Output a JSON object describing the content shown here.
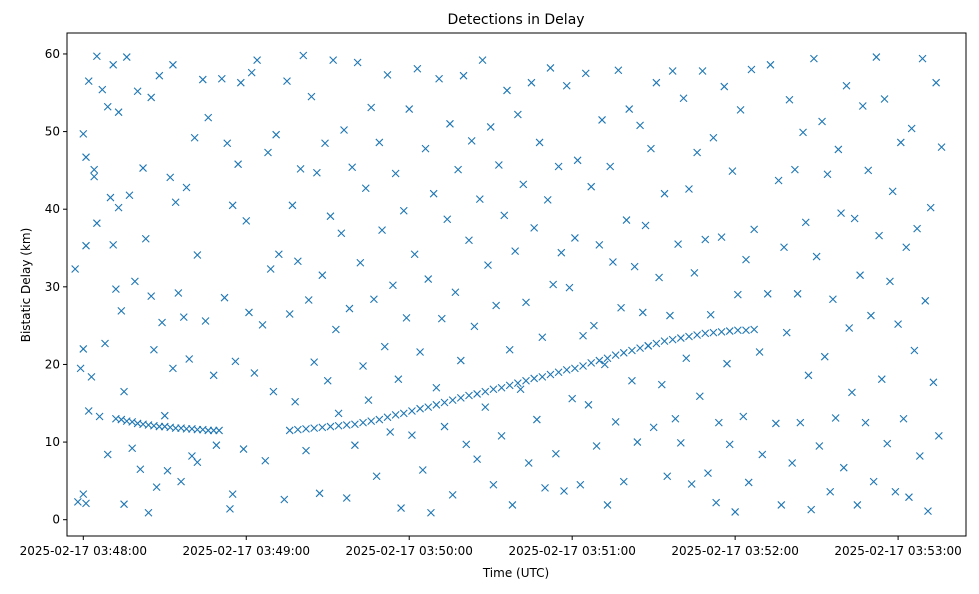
{
  "chart_data": {
    "type": "scatter",
    "title": "Detections in Delay",
    "xlabel": "Time (UTC)",
    "ylabel": "Bistatic Delay (km)",
    "x_units": "seconds after 2025-02-17 03:48:00",
    "xlim": [
      -6,
      325
    ],
    "ylim": [
      -2.1,
      62.7
    ],
    "grid": false,
    "marker": "x",
    "color": "#1f77b4",
    "x_ticks": [
      {
        "value": 0,
        "label": "2025-02-17 03:48:00"
      },
      {
        "value": 60,
        "label": "2025-02-17 03:49:00"
      },
      {
        "value": 120,
        "label": "2025-02-17 03:50:00"
      },
      {
        "value": 180,
        "label": "2025-02-17 03:51:00"
      },
      {
        "value": 240,
        "label": "2025-02-17 03:52:00"
      },
      {
        "value": 300,
        "label": "2025-02-17 03:53:00"
      }
    ],
    "y_ticks": [
      {
        "value": 0,
        "label": "0"
      },
      {
        "value": 10,
        "label": "10"
      },
      {
        "value": 20,
        "label": "20"
      },
      {
        "value": 30,
        "label": "30"
      },
      {
        "value": 40,
        "label": "40"
      },
      {
        "value": 50,
        "label": "50"
      },
      {
        "value": 60,
        "label": "60"
      }
    ],
    "track_points": [
      [
        12,
        13.0
      ],
      [
        14,
        12.9
      ],
      [
        16,
        12.7
      ],
      [
        18,
        12.6
      ],
      [
        20,
        12.4
      ],
      [
        22,
        12.3
      ],
      [
        24,
        12.2
      ],
      [
        26,
        12.1
      ],
      [
        28,
        12.0
      ],
      [
        30,
        12.0
      ],
      [
        32,
        11.9
      ],
      [
        34,
        11.8
      ],
      [
        36,
        11.8
      ],
      [
        38,
        11.7
      ],
      [
        40,
        11.7
      ],
      [
        42,
        11.6
      ],
      [
        44,
        11.6
      ],
      [
        46,
        11.5
      ],
      [
        48,
        11.5
      ],
      [
        50,
        11.5
      ],
      [
        76,
        11.5
      ],
      [
        79,
        11.6
      ],
      [
        82,
        11.7
      ],
      [
        85,
        11.8
      ],
      [
        88,
        11.9
      ],
      [
        91,
        12.0
      ],
      [
        94,
        12.1
      ],
      [
        97,
        12.2
      ],
      [
        100,
        12.3
      ],
      [
        103,
        12.5
      ],
      [
        106,
        12.7
      ],
      [
        109,
        12.9
      ],
      [
        112,
        13.2
      ],
      [
        115,
        13.5
      ],
      [
        118,
        13.7
      ],
      [
        121,
        14.0
      ],
      [
        124,
        14.3
      ],
      [
        127,
        14.5
      ],
      [
        130,
        14.8
      ],
      [
        133,
        15.1
      ],
      [
        136,
        15.4
      ],
      [
        139,
        15.7
      ],
      [
        142,
        16.0
      ],
      [
        145,
        16.2
      ],
      [
        148,
        16.5
      ],
      [
        151,
        16.8
      ],
      [
        154,
        17.0
      ],
      [
        157,
        17.3
      ],
      [
        160,
        17.6
      ],
      [
        163,
        17.9
      ],
      [
        166,
        18.2
      ],
      [
        169,
        18.4
      ],
      [
        172,
        18.7
      ],
      [
        175,
        19.0
      ],
      [
        178,
        19.3
      ],
      [
        181,
        19.5
      ],
      [
        184,
        19.8
      ],
      [
        187,
        20.2
      ],
      [
        190,
        20.5
      ],
      [
        193,
        20.8
      ],
      [
        196,
        21.2
      ],
      [
        199,
        21.5
      ],
      [
        202,
        21.8
      ],
      [
        205,
        22.1
      ],
      [
        208,
        22.4
      ],
      [
        211,
        22.7
      ],
      [
        214,
        23.0
      ],
      [
        217,
        23.2
      ],
      [
        220,
        23.4
      ],
      [
        223,
        23.6
      ],
      [
        226,
        23.8
      ],
      [
        229,
        24.0
      ],
      [
        232,
        24.1
      ],
      [
        235,
        24.2
      ],
      [
        238,
        24.3
      ],
      [
        241,
        24.4
      ],
      [
        244,
        24.4
      ],
      [
        247,
        24.5
      ]
    ],
    "noise_points": [
      [
        -3,
        32.3
      ],
      [
        -2,
        2.3
      ],
      [
        -1,
        19.5
      ],
      [
        0,
        3.3
      ],
      [
        0,
        22
      ],
      [
        0,
        49.7
      ],
      [
        1,
        46.7
      ],
      [
        1,
        35.3
      ],
      [
        1,
        2.1
      ],
      [
        2,
        56.5
      ],
      [
        2,
        14
      ],
      [
        3,
        18.4
      ],
      [
        4,
        45.1
      ],
      [
        4,
        44.2
      ],
      [
        5,
        59.7
      ],
      [
        5,
        38.2
      ],
      [
        6,
        13.3
      ],
      [
        7,
        55.4
      ],
      [
        8,
        22.7
      ],
      [
        9,
        53.2
      ],
      [
        9,
        8.4
      ],
      [
        10,
        41.5
      ],
      [
        11,
        58.6
      ],
      [
        11,
        35.4
      ],
      [
        12,
        29.7
      ],
      [
        13,
        52.5
      ],
      [
        13,
        40.2
      ],
      [
        14,
        26.9
      ],
      [
        15,
        16.5
      ],
      [
        15,
        2.0
      ],
      [
        16,
        59.6
      ],
      [
        17,
        41.8
      ],
      [
        18,
        9.2
      ],
      [
        19,
        30.7
      ],
      [
        20,
        55.2
      ],
      [
        21,
        6.5
      ],
      [
        22,
        45.3
      ],
      [
        23,
        36.2
      ],
      [
        24,
        0.9
      ],
      [
        25,
        54.4
      ],
      [
        25,
        28.8
      ],
      [
        26,
        21.9
      ],
      [
        27,
        4.2
      ],
      [
        28,
        57.2
      ],
      [
        29,
        25.4
      ],
      [
        30,
        13.4
      ],
      [
        31,
        6.3
      ],
      [
        32,
        44.1
      ],
      [
        33,
        58.6
      ],
      [
        33,
        19.5
      ],
      [
        34,
        40.9
      ],
      [
        35,
        29.2
      ],
      [
        36,
        4.9
      ],
      [
        37,
        26.1
      ],
      [
        38,
        42.8
      ],
      [
        39,
        20.7
      ],
      [
        40,
        8.2
      ],
      [
        41,
        49.2
      ],
      [
        42,
        34.1
      ],
      [
        42,
        7.4
      ],
      [
        44,
        56.7
      ],
      [
        45,
        25.6
      ],
      [
        46,
        51.8
      ],
      [
        48,
        18.6
      ],
      [
        49,
        9.6
      ],
      [
        51,
        56.8
      ],
      [
        52,
        28.6
      ],
      [
        53,
        48.5
      ],
      [
        54,
        1.4
      ],
      [
        55,
        40.5
      ],
      [
        55,
        3.3
      ],
      [
        56,
        20.4
      ],
      [
        57,
        45.8
      ],
      [
        58,
        56.3
      ],
      [
        59,
        9.1
      ],
      [
        60,
        38.5
      ],
      [
        61,
        26.7
      ],
      [
        62,
        57.6
      ],
      [
        63,
        18.9
      ],
      [
        64,
        59.2
      ],
      [
        66,
        25.1
      ],
      [
        67,
        7.6
      ],
      [
        68,
        47.3
      ],
      [
        69,
        32.3
      ],
      [
        70,
        16.5
      ],
      [
        71,
        49.6
      ],
      [
        72,
        34.2
      ],
      [
        74,
        2.6
      ],
      [
        75,
        56.5
      ],
      [
        76,
        26.5
      ],
      [
        77,
        40.5
      ],
      [
        78,
        15.2
      ],
      [
        79,
        33.3
      ],
      [
        80,
        45.2
      ],
      [
        81,
        59.8
      ],
      [
        82,
        8.9
      ],
      [
        83,
        28.3
      ],
      [
        84,
        54.5
      ],
      [
        85,
        20.3
      ],
      [
        86,
        44.7
      ],
      [
        87,
        3.4
      ],
      [
        88,
        31.5
      ],
      [
        89,
        48.5
      ],
      [
        90,
        17.9
      ],
      [
        91,
        39.1
      ],
      [
        92,
        59.2
      ],
      [
        93,
        24.5
      ],
      [
        94,
        13.7
      ],
      [
        95,
        36.9
      ],
      [
        96,
        50.2
      ],
      [
        97,
        2.8
      ],
      [
        98,
        27.2
      ],
      [
        99,
        45.4
      ],
      [
        100,
        9.6
      ],
      [
        101,
        58.9
      ],
      [
        102,
        33.1
      ],
      [
        103,
        19.8
      ],
      [
        104,
        42.7
      ],
      [
        105,
        15.4
      ],
      [
        106,
        53.1
      ],
      [
        107,
        28.4
      ],
      [
        108,
        5.6
      ],
      [
        109,
        48.6
      ],
      [
        110,
        37.3
      ],
      [
        111,
        22.3
      ],
      [
        112,
        57.3
      ],
      [
        113,
        11.3
      ],
      [
        114,
        30.2
      ],
      [
        115,
        44.6
      ],
      [
        116,
        18.1
      ],
      [
        117,
        1.5
      ],
      [
        118,
        39.8
      ],
      [
        119,
        26.0
      ],
      [
        120,
        52.9
      ],
      [
        121,
        10.9
      ],
      [
        122,
        34.2
      ],
      [
        123,
        58.1
      ],
      [
        124,
        21.6
      ],
      [
        125,
        6.4
      ],
      [
        126,
        47.8
      ],
      [
        127,
        31.0
      ],
      [
        128,
        0.9
      ],
      [
        129,
        42.0
      ],
      [
        130,
        17.0
      ],
      [
        131,
        56.8
      ],
      [
        132,
        25.9
      ],
      [
        133,
        12.0
      ],
      [
        134,
        38.7
      ],
      [
        135,
        51.0
      ],
      [
        136,
        3.2
      ],
      [
        137,
        29.3
      ],
      [
        138,
        45.1
      ],
      [
        139,
        20.5
      ],
      [
        140,
        57.2
      ],
      [
        141,
        9.7
      ],
      [
        142,
        36.0
      ],
      [
        143,
        48.8
      ],
      [
        144,
        24.9
      ],
      [
        145,
        7.8
      ],
      [
        146,
        41.3
      ],
      [
        147,
        59.2
      ],
      [
        148,
        14.5
      ],
      [
        149,
        32.8
      ],
      [
        150,
        50.6
      ],
      [
        151,
        4.5
      ],
      [
        152,
        27.6
      ],
      [
        153,
        45.7
      ],
      [
        154,
        10.8
      ],
      [
        155,
        39.2
      ],
      [
        156,
        55.3
      ],
      [
        157,
        21.9
      ],
      [
        158,
        1.9
      ],
      [
        159,
        34.6
      ],
      [
        160,
        52.2
      ],
      [
        161,
        16.8
      ],
      [
        162,
        43.2
      ],
      [
        163,
        28.0
      ],
      [
        164,
        7.3
      ],
      [
        165,
        56.3
      ],
      [
        166,
        37.6
      ],
      [
        167,
        12.9
      ],
      [
        168,
        48.6
      ],
      [
        169,
        23.5
      ],
      [
        170,
        4.1
      ],
      [
        171,
        41.2
      ],
      [
        172,
        58.2
      ],
      [
        173,
        30.3
      ],
      [
        174,
        8.5
      ],
      [
        175,
        45.5
      ],
      [
        176,
        34.4
      ],
      [
        177,
        3.7
      ],
      [
        178,
        55.9
      ],
      [
        179,
        29.9
      ],
      [
        180,
        15.6
      ],
      [
        181,
        36.3
      ],
      [
        182,
        46.3
      ],
      [
        183,
        4.5
      ],
      [
        184,
        23.7
      ],
      [
        185,
        57.5
      ],
      [
        186,
        14.8
      ],
      [
        187,
        42.9
      ],
      [
        188,
        25.0
      ],
      [
        189,
        9.5
      ],
      [
        190,
        35.4
      ],
      [
        191,
        51.5
      ],
      [
        192,
        20.0
      ],
      [
        193,
        1.9
      ],
      [
        194,
        45.5
      ],
      [
        195,
        33.2
      ],
      [
        196,
        12.6
      ],
      [
        197,
        57.9
      ],
      [
        198,
        27.3
      ],
      [
        199,
        4.9
      ],
      [
        200,
        38.6
      ],
      [
        201,
        52.9
      ],
      [
        202,
        17.9
      ],
      [
        203,
        32.6
      ],
      [
        204,
        10.0
      ],
      [
        205,
        50.8
      ],
      [
        206,
        26.7
      ],
      [
        207,
        37.9
      ],
      [
        208,
        22.4
      ],
      [
        209,
        47.8
      ],
      [
        210,
        11.9
      ],
      [
        211,
        56.3
      ],
      [
        212,
        31.2
      ],
      [
        213,
        17.4
      ],
      [
        214,
        42.0
      ],
      [
        215,
        5.6
      ],
      [
        216,
        26.3
      ],
      [
        217,
        57.8
      ],
      [
        218,
        13.0
      ],
      [
        219,
        35.5
      ],
      [
        220,
        9.9
      ],
      [
        221,
        54.3
      ],
      [
        222,
        20.8
      ],
      [
        223,
        42.6
      ],
      [
        224,
        4.6
      ],
      [
        225,
        31.8
      ],
      [
        226,
        47.3
      ],
      [
        227,
        15.9
      ],
      [
        228,
        57.8
      ],
      [
        229,
        36.1
      ],
      [
        230,
        6.0
      ],
      [
        231,
        26.4
      ],
      [
        232,
        49.2
      ],
      [
        233,
        2.2
      ],
      [
        234,
        12.5
      ],
      [
        235,
        36.4
      ],
      [
        236,
        55.8
      ],
      [
        237,
        20.1
      ],
      [
        238,
        9.7
      ],
      [
        239,
        44.9
      ],
      [
        240,
        1.0
      ],
      [
        241,
        29.0
      ],
      [
        242,
        52.8
      ],
      [
        243,
        13.3
      ],
      [
        244,
        33.5
      ],
      [
        245,
        4.8
      ],
      [
        246,
        58.0
      ],
      [
        247,
        37.4
      ],
      [
        249,
        21.6
      ],
      [
        250,
        8.4
      ],
      [
        252,
        29.1
      ],
      [
        253,
        58.6
      ],
      [
        255,
        12.4
      ],
      [
        256,
        43.7
      ],
      [
        257,
        1.9
      ],
      [
        258,
        35.1
      ],
      [
        259,
        24.1
      ],
      [
        260,
        54.1
      ],
      [
        261,
        7.3
      ],
      [
        262,
        45.1
      ],
      [
        263,
        29.1
      ],
      [
        264,
        12.5
      ],
      [
        265,
        49.9
      ],
      [
        266,
        38.3
      ],
      [
        267,
        18.6
      ],
      [
        268,
        1.3
      ],
      [
        269,
        59.4
      ],
      [
        270,
        33.9
      ],
      [
        271,
        9.5
      ],
      [
        272,
        51.3
      ],
      [
        273,
        21.0
      ],
      [
        274,
        44.5
      ],
      [
        275,
        3.6
      ],
      [
        276,
        28.4
      ],
      [
        277,
        13.1
      ],
      [
        278,
        47.7
      ],
      [
        279,
        39.5
      ],
      [
        280,
        6.7
      ],
      [
        281,
        55.9
      ],
      [
        282,
        24.7
      ],
      [
        283,
        16.4
      ],
      [
        284,
        38.8
      ],
      [
        285,
        1.9
      ],
      [
        286,
        31.5
      ],
      [
        287,
        53.3
      ],
      [
        288,
        12.5
      ],
      [
        289,
        45.0
      ],
      [
        290,
        26.3
      ],
      [
        291,
        4.9
      ],
      [
        292,
        59.6
      ],
      [
        293,
        36.6
      ],
      [
        294,
        18.1
      ],
      [
        295,
        54.2
      ],
      [
        296,
        9.8
      ],
      [
        297,
        30.7
      ],
      [
        298,
        42.3
      ],
      [
        299,
        3.6
      ],
      [
        300,
        25.2
      ],
      [
        301,
        48.6
      ],
      [
        302,
        13.0
      ],
      [
        303,
        35.1
      ],
      [
        304,
        2.9
      ],
      [
        305,
        50.4
      ],
      [
        306,
        21.8
      ],
      [
        307,
        37.5
      ],
      [
        308,
        8.2
      ],
      [
        309,
        59.4
      ],
      [
        310,
        28.2
      ],
      [
        311,
        1.1
      ],
      [
        312,
        40.2
      ],
      [
        313,
        17.7
      ],
      [
        314,
        56.3
      ],
      [
        315,
        10.8
      ],
      [
        316,
        48.0
      ]
    ]
  }
}
